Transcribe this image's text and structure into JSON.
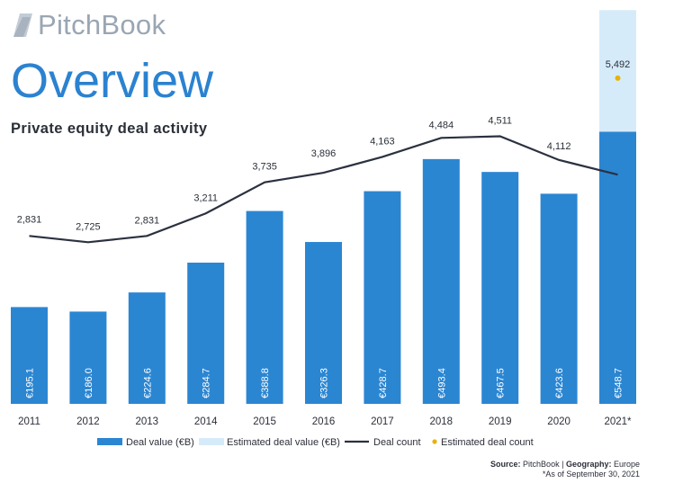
{
  "header": {
    "logo_text": "PitchBook",
    "page_title": "Overview",
    "chart_title": "Private equity deal activity"
  },
  "colors": {
    "bar": "#2b86d2",
    "estimated_bar": "#d6ebfa",
    "line": "#2b3140",
    "estimated_point": "#e8b20b",
    "title": "#2b82d0",
    "logo": "#9aa6b2"
  },
  "chart_data": {
    "type": "bar",
    "title": "Private equity deal activity",
    "categories": [
      "2011",
      "2012",
      "2013",
      "2014",
      "2015",
      "2016",
      "2017",
      "2018",
      "2019",
      "2020",
      "2021*"
    ],
    "series": [
      {
        "name": "Deal value (€B)",
        "type": "bar",
        "values": [
          195.1,
          186.0,
          224.6,
          284.7,
          388.8,
          326.3,
          428.7,
          493.4,
          467.5,
          423.6,
          548.7
        ],
        "labels": [
          "€195.1",
          "€186.0",
          "€224.6",
          "€284.7",
          "€388.8",
          "€326.3",
          "€428.7",
          "€493.4",
          "€467.5",
          "€423.6",
          "€548.7"
        ]
      },
      {
        "name": "Estimated deal value (€B)",
        "type": "bar-stacked",
        "values": [
          null,
          null,
          null,
          null,
          null,
          null,
          null,
          null,
          null,
          null,
          245
        ]
      },
      {
        "name": "Deal count",
        "type": "line",
        "values": [
          2831,
          2725,
          2831,
          3211,
          3735,
          3896,
          4163,
          4484,
          4511,
          4112,
          3865
        ],
        "labels": [
          "2,831",
          "2,725",
          "2,831",
          "3,211",
          "3,735",
          "3,896",
          "4,163",
          "4,484",
          "4,511",
          "4,112",
          ""
        ]
      },
      {
        "name": "Estimated deal count",
        "type": "point",
        "values": [
          null,
          null,
          null,
          null,
          null,
          null,
          null,
          null,
          null,
          null,
          5492
        ],
        "labels": [
          "",
          "",
          "",
          "",
          "",
          "",
          "",
          "",
          "",
          "",
          "5,492"
        ]
      }
    ],
    "value_axis_range": [
      0,
      825
    ],
    "count_axis_range": [
      0,
      6900
    ],
    "grid": false,
    "legend_position": "bottom"
  },
  "footer": {
    "source_label": "Source:",
    "source_value": "PitchBook |",
    "geography_label": "Geography:",
    "geography_value": "Europe",
    "note": "*As of September 30, 2021"
  }
}
